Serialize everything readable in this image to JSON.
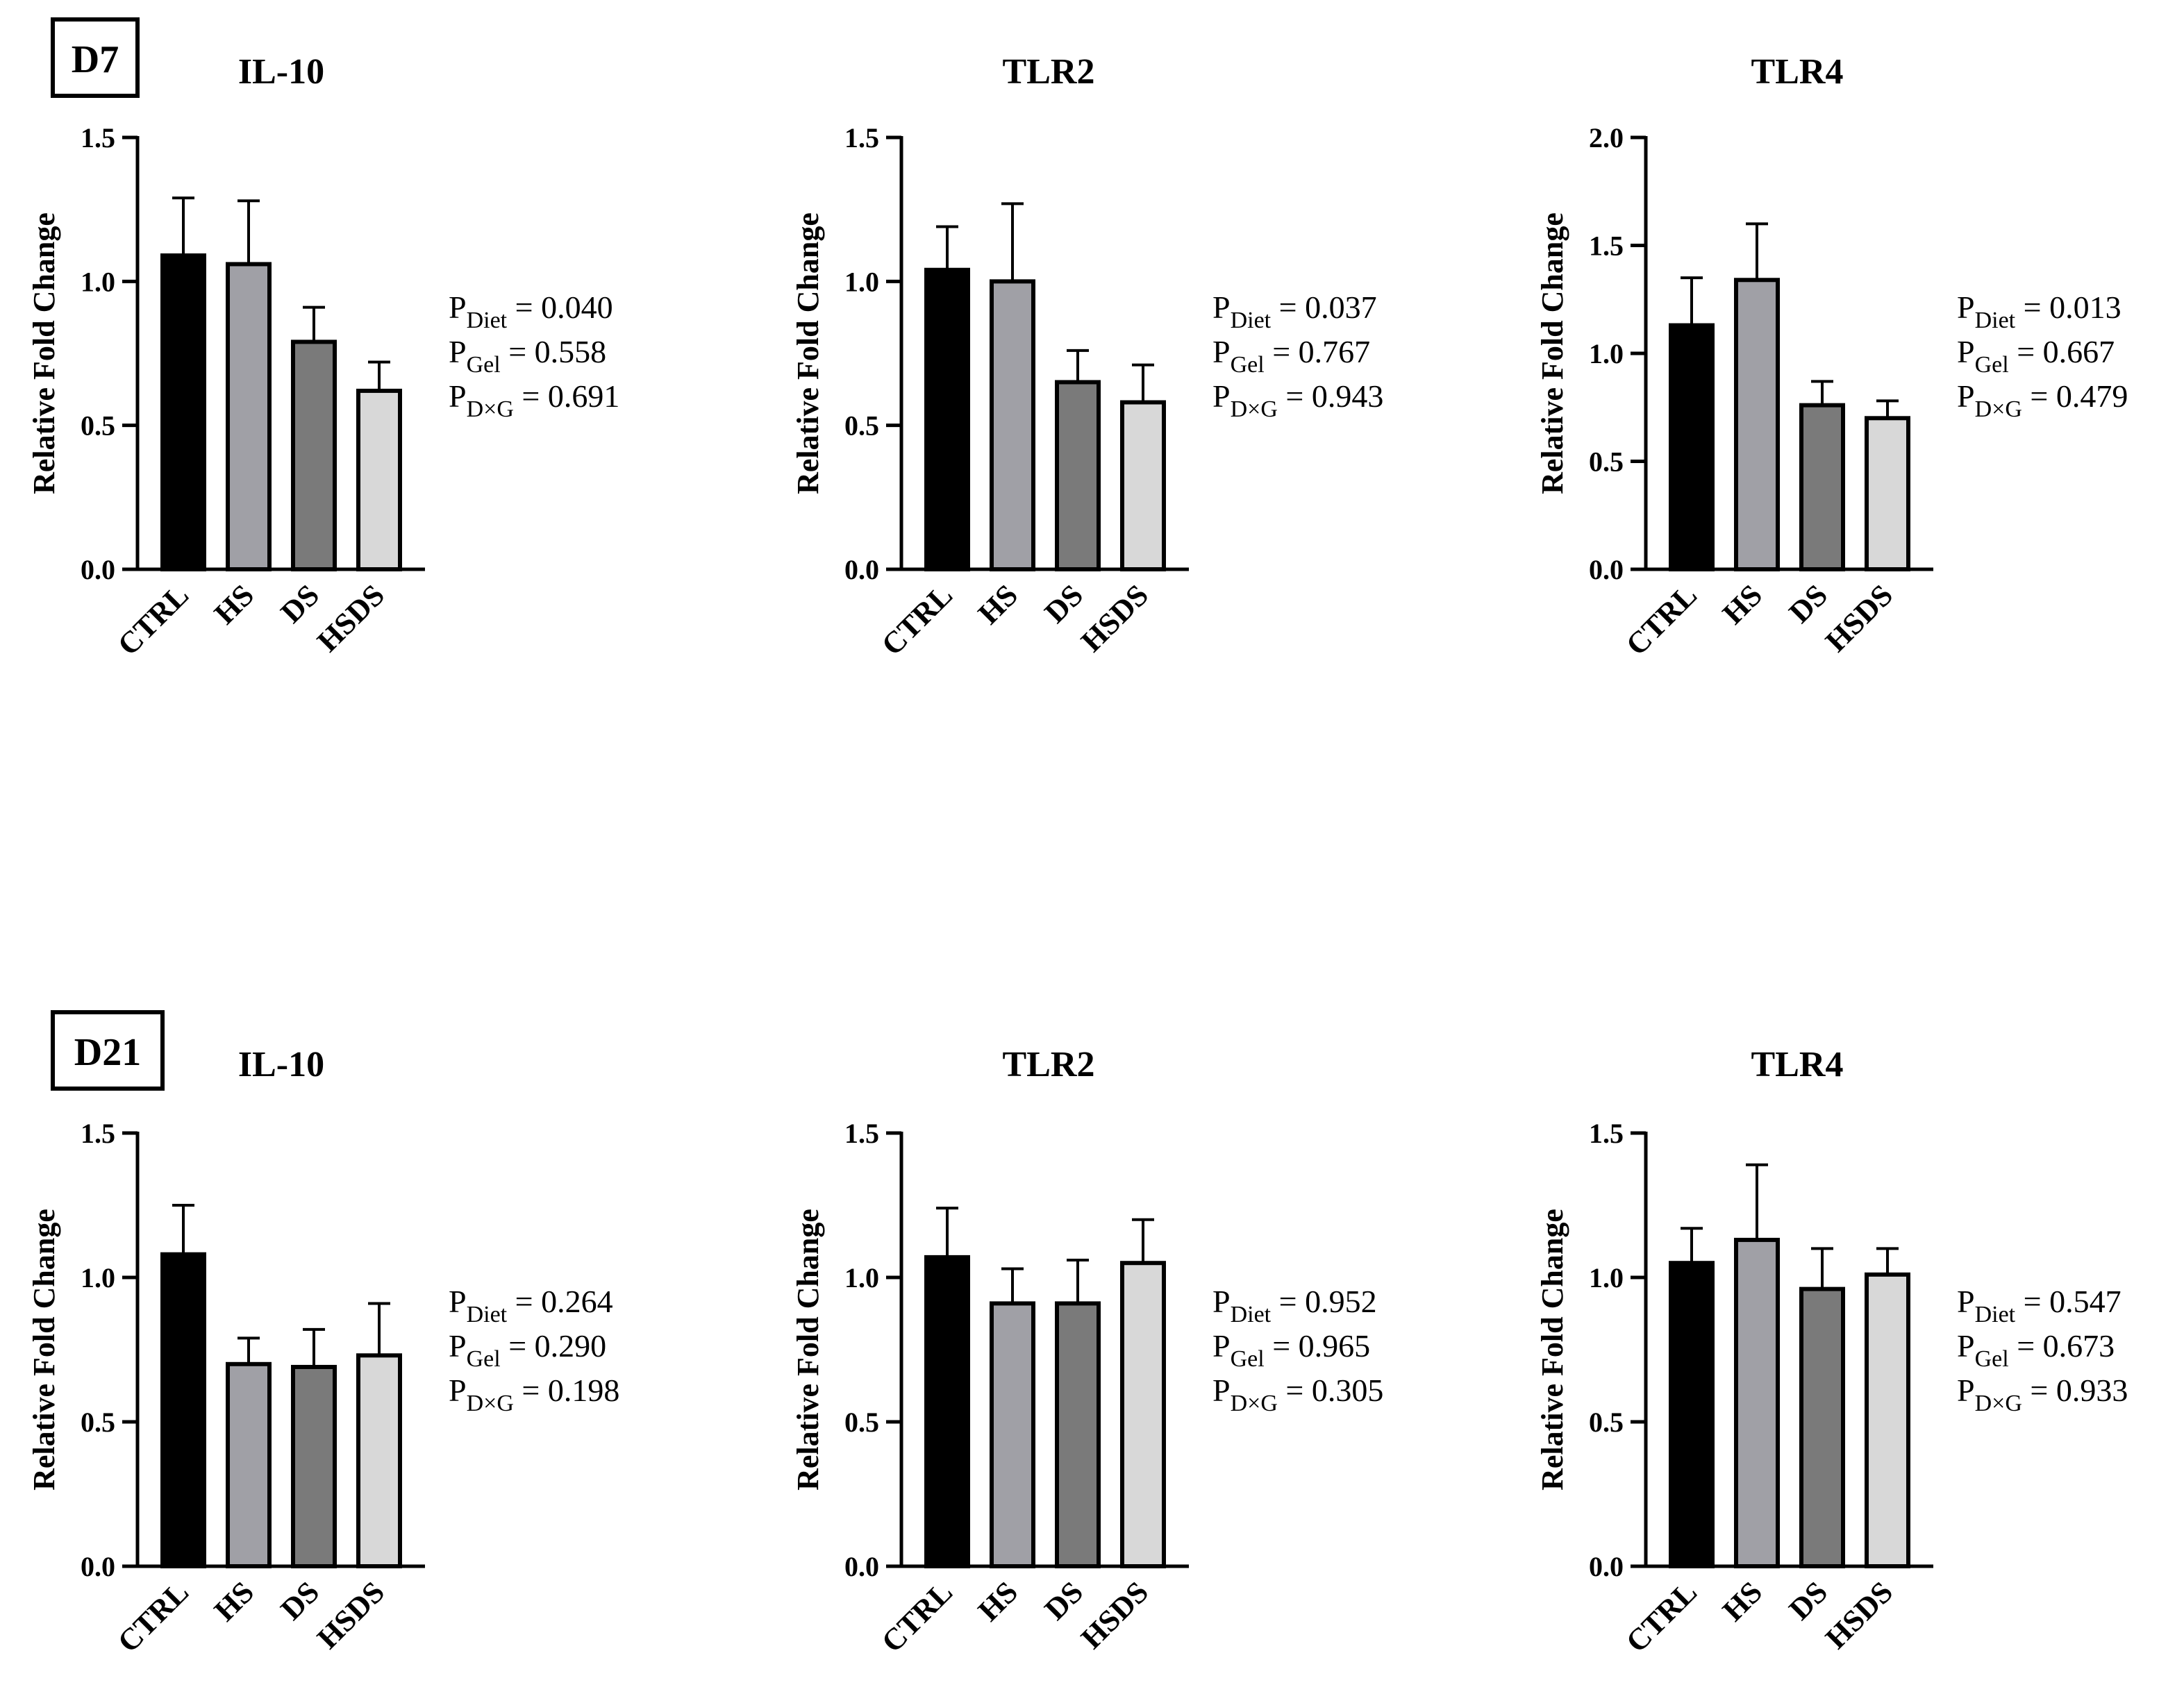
{
  "figure": {
    "colors": {
      "CTRL": "#000000",
      "HS": "#a0a0a6",
      "DS": "#7a7a7a",
      "HSDS": "#d8d8d8",
      "axis": "#000000"
    }
  },
  "rows": [
    {
      "label": "D7"
    },
    {
      "label": "D21"
    }
  ],
  "chart_data": [
    {
      "type": "bar",
      "row": "D7",
      "title": "IL-10",
      "ylabel": "Relative Fold Change",
      "categories": [
        "CTRL",
        "HS",
        "DS",
        "HSDS"
      ],
      "values": [
        1.09,
        1.06,
        0.79,
        0.62
      ],
      "errors": [
        0.2,
        0.22,
        0.12,
        0.1
      ],
      "ylim": [
        0,
        1.5
      ],
      "yticks": [
        "0.0",
        "0.5",
        "1.0",
        "1.5"
      ],
      "stats": [
        {
          "p": "P",
          "sub": "Diet",
          "text": " = 0.040"
        },
        {
          "p": "P",
          "sub": "Gel",
          "text": "  = 0.558"
        },
        {
          "p": "P",
          "sub": "D×G",
          "text": " = 0.691"
        }
      ]
    },
    {
      "type": "bar",
      "row": "D7",
      "title": "TLR2",
      "ylabel": "Relative Fold Change",
      "categories": [
        "CTRL",
        "HS",
        "DS",
        "HSDS"
      ],
      "values": [
        1.04,
        1.0,
        0.65,
        0.58
      ],
      "errors": [
        0.15,
        0.27,
        0.11,
        0.13
      ],
      "ylim": [
        0,
        1.5
      ],
      "yticks": [
        "0.0",
        "0.5",
        "1.0",
        "1.5"
      ],
      "stats": [
        {
          "p": "P",
          "sub": "Diet",
          "text": " = 0.037"
        },
        {
          "p": "P",
          "sub": "Gel",
          "text": "  = 0.767"
        },
        {
          "p": "P",
          "sub": "D×G",
          "text": " = 0.943"
        }
      ]
    },
    {
      "type": "bar",
      "row": "D7",
      "title": "TLR4",
      "ylabel": "Relative Fold Change",
      "categories": [
        "CTRL",
        "HS",
        "DS",
        "HSDS"
      ],
      "values": [
        1.13,
        1.34,
        0.76,
        0.7
      ],
      "errors": [
        0.22,
        0.26,
        0.11,
        0.08
      ],
      "ylim": [
        0,
        2.0
      ],
      "yticks": [
        "0.0",
        "0.5",
        "1.0",
        "1.5",
        "2.0"
      ],
      "stats": [
        {
          "p": "P",
          "sub": "Diet",
          "text": " = 0.013"
        },
        {
          "p": "P",
          "sub": "Gel",
          "text": "  = 0.667"
        },
        {
          "p": "P",
          "sub": "D×G",
          "text": " = 0.479"
        }
      ]
    },
    {
      "type": "bar",
      "row": "D21",
      "title": "IL-10",
      "ylabel": "Relative Fold Change",
      "categories": [
        "CTRL",
        "HS",
        "DS",
        "HSDS"
      ],
      "values": [
        1.08,
        0.7,
        0.69,
        0.73
      ],
      "errors": [
        0.17,
        0.09,
        0.13,
        0.18
      ],
      "ylim": [
        0,
        1.5
      ],
      "yticks": [
        "0.0",
        "0.5",
        "1.0",
        "1.5"
      ],
      "stats": [
        {
          "p": "P",
          "sub": "Diet",
          "text": " = 0.264"
        },
        {
          "p": "P",
          "sub": "Gel",
          "text": "  = 0.290"
        },
        {
          "p": "P",
          "sub": "D×G",
          "text": " = 0.198"
        }
      ]
    },
    {
      "type": "bar",
      "row": "D21",
      "title": "TLR2",
      "ylabel": "Relative Fold Change",
      "categories": [
        "CTRL",
        "HS",
        "DS",
        "HSDS"
      ],
      "values": [
        1.07,
        0.91,
        0.91,
        1.05
      ],
      "errors": [
        0.17,
        0.12,
        0.15,
        0.15
      ],
      "ylim": [
        0,
        1.5
      ],
      "yticks": [
        "0.0",
        "0.5",
        "1.0",
        "1.5"
      ],
      "stats": [
        {
          "p": "P",
          "sub": "Diet",
          "text": " = 0.952"
        },
        {
          "p": "P",
          "sub": "Gel",
          "text": "  = 0.965"
        },
        {
          "p": "P",
          "sub": "D×G",
          "text": " = 0.305"
        }
      ]
    },
    {
      "type": "bar",
      "row": "D21",
      "title": "TLR4",
      "ylabel": "Relative Fold Change",
      "categories": [
        "CTRL",
        "HS",
        "DS",
        "HSDS"
      ],
      "values": [
        1.05,
        1.13,
        0.96,
        1.01
      ],
      "errors": [
        0.12,
        0.26,
        0.14,
        0.09
      ],
      "ylim": [
        0,
        1.5
      ],
      "yticks": [
        "0.0",
        "0.5",
        "1.0",
        "1.5"
      ],
      "stats": [
        {
          "p": "P",
          "sub": "Diet",
          "text": " = 0.547"
        },
        {
          "p": "P",
          "sub": "Gel",
          "text": "  = 0.673"
        },
        {
          "p": "P",
          "sub": "D×G",
          "text": " = 0.933"
        }
      ]
    }
  ]
}
